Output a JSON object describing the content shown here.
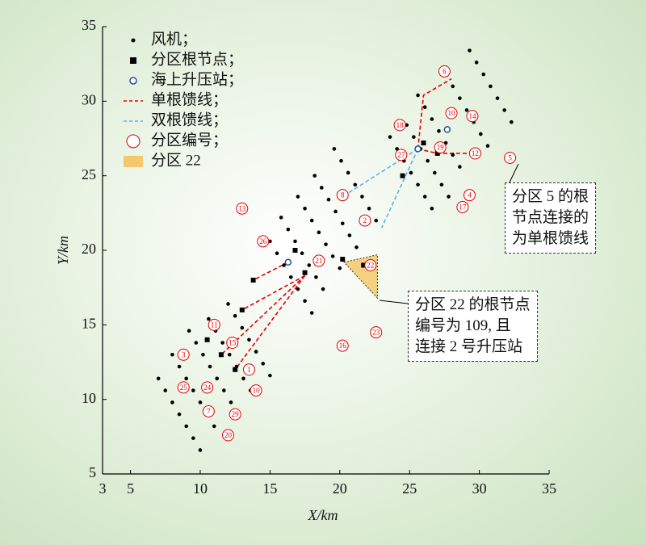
{
  "chart_data": {
    "type": "scatter",
    "xlabel": "X/km",
    "ylabel": "Y/km",
    "xlim": [
      3,
      35
    ],
    "xticks": [
      3,
      5,
      10,
      15,
      20,
      25,
      30,
      35
    ],
    "ylim": [
      5,
      35
    ],
    "yticks": [
      5,
      10,
      15,
      20,
      25,
      30,
      35
    ],
    "series": [
      {
        "name": "风机；",
        "color": "#000000",
        "marker": "dot",
        "x": [
          29.3,
          29.8,
          30.3,
          30.8,
          31.3,
          31.8,
          32.3,
          27.6,
          28.1,
          28.6,
          29.1,
          29.6,
          30.1,
          30.6,
          25.6,
          26.1,
          26.6,
          27.1,
          27.6,
          28.1,
          28.6,
          24.8,
          25.3,
          25.8,
          26.3,
          26.8,
          27.3,
          27.8,
          23.6,
          24.1,
          24.6,
          25.1,
          25.6,
          26.1,
          26.6,
          19.6,
          20.1,
          20.6,
          21.1,
          21.6,
          22.1,
          22.6,
          18.2,
          18.7,
          19.2,
          19.7,
          20.2,
          20.7,
          21.2,
          17.0,
          17.5,
          18.0,
          18.5,
          19.0,
          19.5,
          20.0,
          15.8,
          16.3,
          16.8,
          17.3,
          17.8,
          18.3,
          18.8,
          15.0,
          15.5,
          16.0,
          16.5,
          17.0,
          17.5,
          18.0,
          12.0,
          12.5,
          13.0,
          13.5,
          14.0,
          14.5,
          15.0,
          10.6,
          11.1,
          11.6,
          12.1,
          12.6,
          13.1,
          13.6,
          9.2,
          9.7,
          10.2,
          10.7,
          11.2,
          11.7,
          12.2,
          8.0,
          8.5,
          9.0,
          9.5,
          10.0,
          10.5,
          11.0,
          7.0,
          7.5,
          8.0,
          8.5,
          9.0,
          9.5,
          10.0
        ],
        "y": [
          33.4,
          32.6,
          31.8,
          31.0,
          30.2,
          29.4,
          28.6,
          31.8,
          31.0,
          30.2,
          29.4,
          28.6,
          27.8,
          27.0,
          30.4,
          29.6,
          28.8,
          28.0,
          27.2,
          26.4,
          25.6,
          28.4,
          27.6,
          26.8,
          26.0,
          25.2,
          24.4,
          23.6,
          27.6,
          26.8,
          26.0,
          25.2,
          24.4,
          23.6,
          22.8,
          26.8,
          26.0,
          25.2,
          24.4,
          23.6,
          22.8,
          22.0,
          25.0,
          24.2,
          23.4,
          22.6,
          21.8,
          21.0,
          20.2,
          23.6,
          22.8,
          22.0,
          21.2,
          20.4,
          19.6,
          18.8,
          22.2,
          21.4,
          20.6,
          19.8,
          19.0,
          18.2,
          17.4,
          20.6,
          19.8,
          19.0,
          18.2,
          17.4,
          16.6,
          15.8,
          16.4,
          15.6,
          14.8,
          14.0,
          13.2,
          12.4,
          11.6,
          15.4,
          14.6,
          13.8,
          13.0,
          12.2,
          11.4,
          10.6,
          14.6,
          13.8,
          13.0,
          12.2,
          11.4,
          10.6,
          9.8,
          13.0,
          12.2,
          11.4,
          10.6,
          9.8,
          9.0,
          8.2,
          11.4,
          10.6,
          9.8,
          9.0,
          8.2,
          7.4,
          6.6
        ]
      },
      {
        "name": "分区根节点；",
        "color": "#000000",
        "marker": "square",
        "x": [
          16.8,
          17.5,
          20.2,
          21.7,
          26.0,
          27.0,
          24.5,
          13.0,
          11.5,
          12.5,
          10.5,
          13.8
        ],
        "y": [
          20.0,
          18.5,
          19.4,
          19.0,
          27.2,
          26.5,
          25.0,
          16.0,
          13.0,
          12.0,
          14.0,
          18.0
        ]
      },
      {
        "name": "海上升压站；",
        "color": "#1f4e9c",
        "marker": "ring",
        "x": [
          16.3,
          25.6,
          27.7
        ],
        "y": [
          19.2,
          26.8,
          28.1
        ]
      },
      {
        "name": "单根馈线；",
        "color": "#e00000",
        "marker": "dashed",
        "x": [
          17.5,
          13.0,
          null,
          17.5,
          11.5,
          null,
          16.3,
          13.8,
          null,
          17.5,
          12.5,
          null,
          25.6,
          27.0,
          29.5,
          null,
          25.6,
          26.0,
          28.0
        ],
        "y": [
          18.3,
          16.0,
          null,
          18.3,
          13.0,
          null,
          19.2,
          18.0,
          null,
          18.3,
          12.0,
          null,
          26.8,
          26.5,
          26.5,
          null,
          26.8,
          30.4,
          31.5
        ]
      },
      {
        "name": "双根馈线；",
        "color": "#5ab4e5",
        "marker": "dashed",
        "x": [
          25.6,
          20.2,
          null,
          25.6,
          23.0
        ],
        "y": [
          26.8,
          23.6,
          null,
          26.8,
          21.5
        ]
      },
      {
        "name": "分区编号；",
        "color": "#e00000",
        "marker": "circle-label",
        "x": [
          22.2,
          32.2,
          14.5,
          13.0,
          20.2,
          21.8,
          18.5,
          22.6,
          20.2,
          28.8,
          24.3,
          24.4,
          27.2,
          29.7,
          29.3,
          12.3,
          13.5,
          14.0,
          8.8,
          8.8,
          10.5,
          10.6,
          12.5,
          12.0,
          11.0,
          27.5,
          28.0,
          29.5
        ],
        "y": [
          19.0,
          26.2,
          20.6,
          22.8,
          23.7,
          22.0,
          19.3,
          14.5,
          13.6,
          22.9,
          28.4,
          26.4,
          26.9,
          26.5,
          23.7,
          13.8,
          12.0,
          10.6,
          13.0,
          10.8,
          10.8,
          9.2,
          9.0,
          7.6,
          15.0,
          32.0,
          29.2,
          29.0
        ],
        "labels": [
          "22",
          "5",
          "26",
          "13",
          "8",
          "2",
          "21",
          "23",
          "16",
          "17",
          "18",
          "27",
          "19",
          "12",
          "4",
          "15",
          "1",
          "10",
          "3",
          "25",
          "24",
          "7",
          "29",
          "20",
          "11",
          "6",
          "10",
          "14"
        ]
      },
      {
        "name": "分区 22",
        "color": "#f3c96b",
        "marker": "area",
        "x": [
          20.3,
          22.7,
          22.7
        ],
        "y": [
          19.2,
          19.7,
          16.8
        ]
      }
    ],
    "annotations": [
      {
        "lines": [
          "分区 5 的根",
          "节点连接的",
          "为单根馈线"
        ]
      },
      {
        "lines": [
          "分区 22 的根节点",
          "编号为 109, 且",
          "连接 2 号升压站"
        ]
      }
    ]
  }
}
